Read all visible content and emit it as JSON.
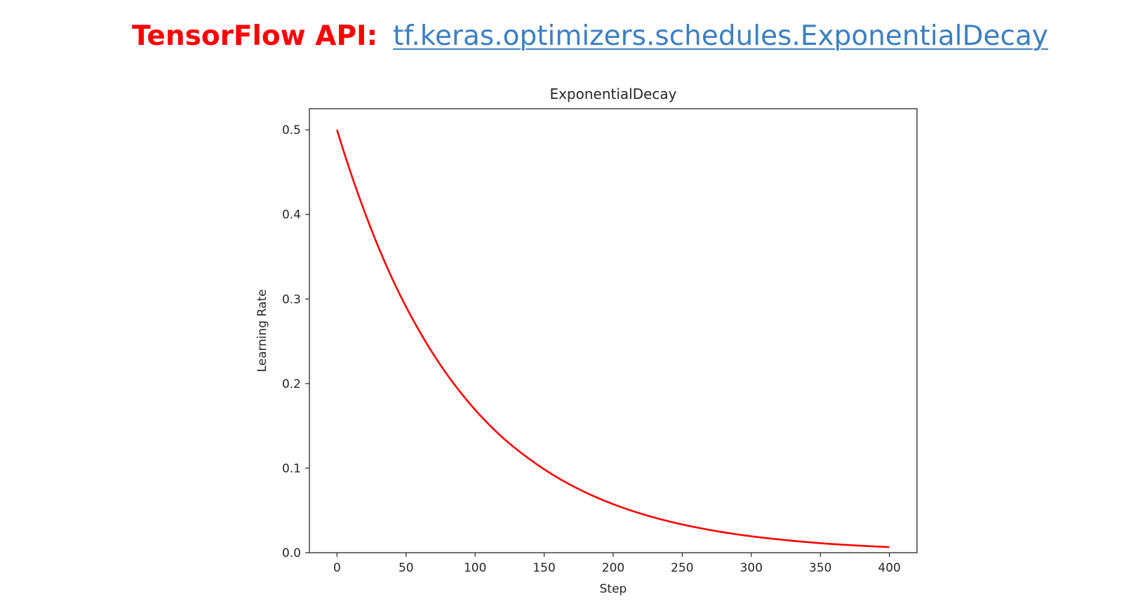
{
  "header": {
    "label": "TensorFlow API:",
    "link_text": "tf.keras.optimizers.schedules.ExponentialDecay",
    "label_color": "#ff0000",
    "link_color": "#3d7fc1"
  },
  "chart_data": {
    "type": "line",
    "title": "ExponentialDecay",
    "xlabel": "Step",
    "ylabel": "Learning Rate",
    "xlim": [
      -20,
      420
    ],
    "ylim": [
      0,
      0.525
    ],
    "xticks": [
      0,
      50,
      100,
      150,
      200,
      250,
      300,
      350,
      400
    ],
    "xtick_labels": [
      "0",
      "50",
      "100",
      "150",
      "200",
      "250",
      "300",
      "350",
      "400"
    ],
    "yticks": [
      0.0,
      0.1,
      0.2,
      0.3,
      0.4,
      0.5
    ],
    "ytick_labels": [
      "0.0",
      "0.1",
      "0.2",
      "0.3",
      "0.4",
      "0.5"
    ],
    "grid": false,
    "series": [
      {
        "color": "#ff0000",
        "x": [
          0,
          20,
          40,
          60,
          80,
          100,
          120,
          140,
          160,
          180,
          200,
          220,
          240,
          260,
          280,
          300,
          320,
          340,
          360,
          380,
          400
        ],
        "y": [
          0.5,
          0.403,
          0.324,
          0.261,
          0.21,
          0.169,
          0.136,
          0.11,
          0.0885,
          0.0713,
          0.0574,
          0.0462,
          0.0372,
          0.03,
          0.0241,
          0.0194,
          0.0157,
          0.0126,
          0.0101,
          0.0082,
          0.0066
        ]
      }
    ]
  }
}
